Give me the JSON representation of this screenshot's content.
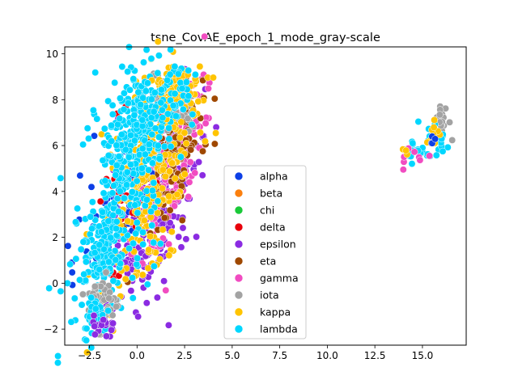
{
  "chart_data": {
    "type": "scatter",
    "title": "tsne_CovAE_epoch_1_mode_gray-scale",
    "xlabel": "",
    "ylabel": "",
    "xlim": [
      -3.8,
      17.3
    ],
    "ylim": [
      -2.7,
      10.3
    ],
    "xticks": [
      -2.5,
      0.0,
      2.5,
      5.0,
      7.5,
      10.0,
      12.5,
      15.0
    ],
    "xtick_labels": [
      "−2.5",
      "0.0",
      "2.5",
      "5.0",
      "7.5",
      "10.0",
      "12.5",
      "15.0"
    ],
    "yticks": [
      -2,
      0,
      2,
      4,
      6,
      8,
      10
    ],
    "ytick_labels": [
      "−2",
      "0",
      "2",
      "4",
      "6",
      "8",
      "10"
    ],
    "grid": false,
    "legend_position": "lower-center",
    "series": [
      {
        "name": "alpha",
        "color": "#0d3fe6"
      },
      {
        "name": "beta",
        "color": "#fb7f0e"
      },
      {
        "name": "chi",
        "color": "#1ac938"
      },
      {
        "name": "delta",
        "color": "#e8000b"
      },
      {
        "name": "epsilon",
        "color": "#8b2be2"
      },
      {
        "name": "eta",
        "color": "#9f4800"
      },
      {
        "name": "gamma",
        "color": "#f14cc1"
      },
      {
        "name": "iota",
        "color": "#a3a3a3"
      },
      {
        "name": "kappa",
        "color": "#ffc400"
      },
      {
        "name": "lambda",
        "color": "#00d7ff"
      }
    ]
  }
}
